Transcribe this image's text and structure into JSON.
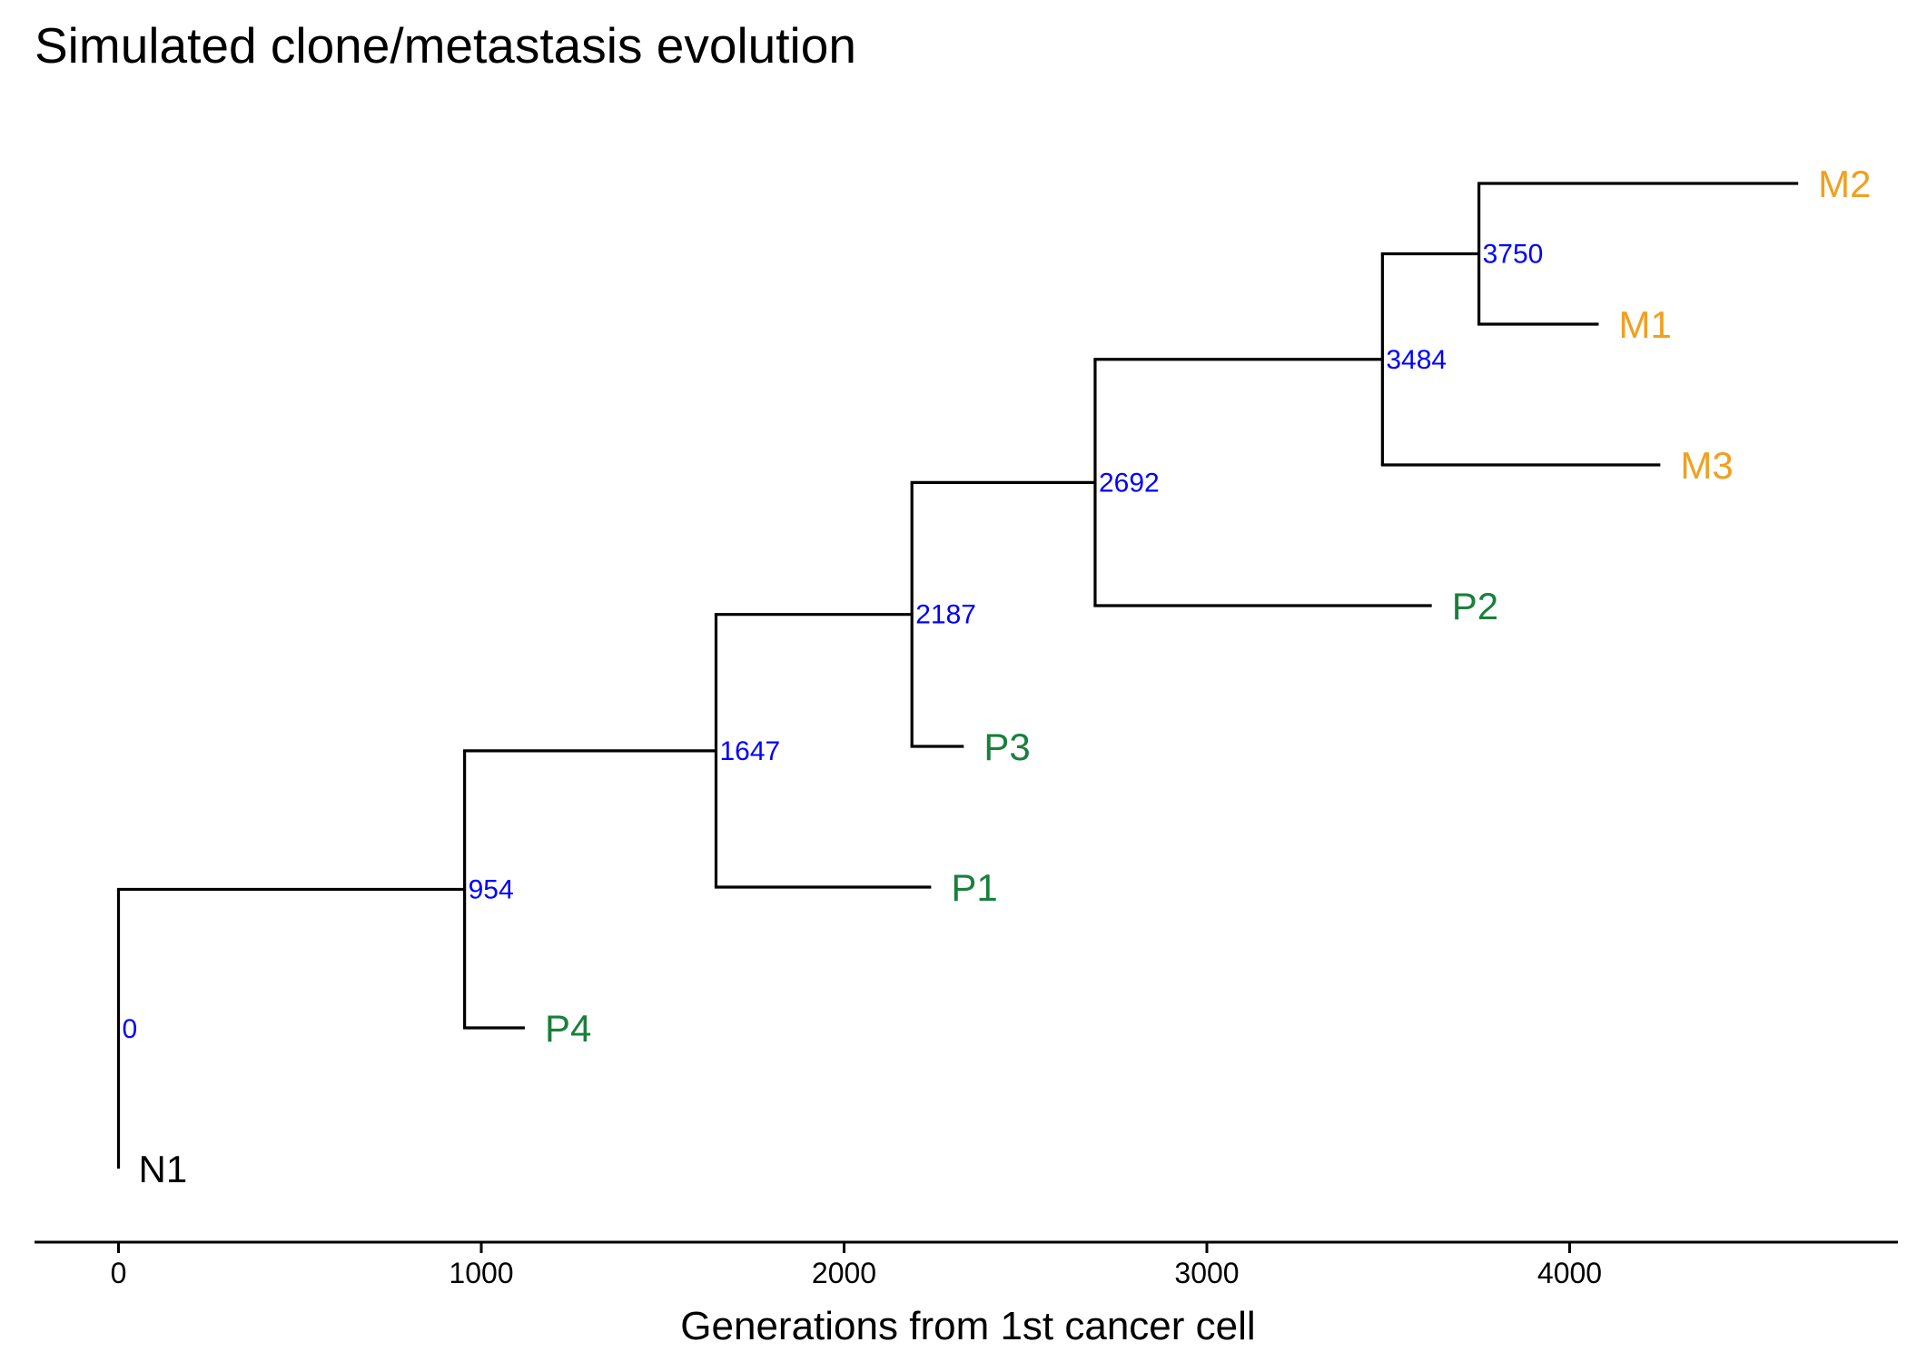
{
  "chart_data": {
    "type": "tree",
    "title": "Simulated clone/metastasis evolution",
    "xlabel": "Generations from 1st cancer cell",
    "xlim": [
      -230,
      4860
    ],
    "xticks": [
      0,
      1000,
      2000,
      3000,
      4000
    ],
    "tip_count": 8,
    "colors": {
      "branch": "#000000",
      "node_label": "#0000ff",
      "normal": "#000000",
      "primary": "#1a7f3c",
      "metastasis": "#f0a020"
    },
    "nodes": [
      {
        "id": "root",
        "x": 0,
        "label": "0",
        "parent": null
      },
      {
        "id": "n954",
        "x": 954,
        "label": "954",
        "parent": "root"
      },
      {
        "id": "n1647",
        "x": 1647,
        "label": "1647",
        "parent": "n954"
      },
      {
        "id": "n2187",
        "x": 2187,
        "label": "2187",
        "parent": "n1647"
      },
      {
        "id": "n2692",
        "x": 2692,
        "label": "2692",
        "parent": "n2187"
      },
      {
        "id": "n3484",
        "x": 3484,
        "label": "3484",
        "parent": "n2692"
      },
      {
        "id": "n3750",
        "x": 3750,
        "label": "3750",
        "parent": "n3484"
      }
    ],
    "tips": [
      {
        "name": "N1",
        "x": 0,
        "row": 0,
        "parent": "root",
        "group": "normal"
      },
      {
        "name": "P4",
        "x": 1120,
        "row": 1,
        "parent": "n954",
        "group": "primary"
      },
      {
        "name": "P1",
        "x": 2240,
        "row": 2,
        "parent": "n1647",
        "group": "primary"
      },
      {
        "name": "P3",
        "x": 2330,
        "row": 3,
        "parent": "n2187",
        "group": "primary"
      },
      {
        "name": "P2",
        "x": 3620,
        "row": 4,
        "parent": "n2692",
        "group": "primary"
      },
      {
        "name": "M3",
        "x": 4250,
        "row": 5,
        "parent": "n3484",
        "group": "metastasis"
      },
      {
        "name": "M1",
        "x": 4080,
        "row": 6,
        "parent": "n3750",
        "group": "metastasis"
      },
      {
        "name": "M2",
        "x": 4630,
        "row": 7,
        "parent": "n3750",
        "group": "metastasis"
      }
    ]
  }
}
